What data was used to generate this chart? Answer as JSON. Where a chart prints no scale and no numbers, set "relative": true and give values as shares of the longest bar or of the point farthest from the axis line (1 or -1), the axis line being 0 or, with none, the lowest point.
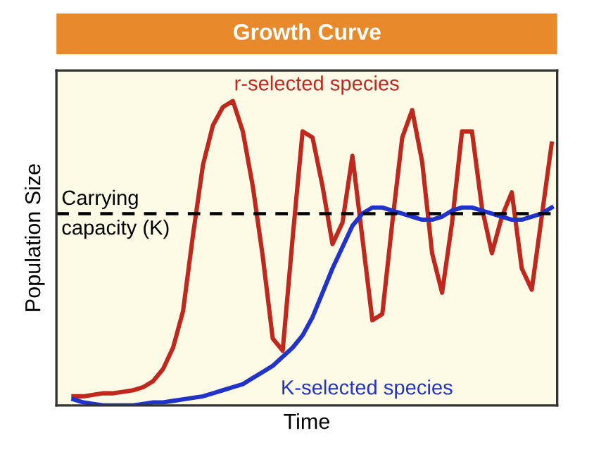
{
  "chart_data": {
    "type": "line",
    "title": "Growth Curve",
    "xlabel": "Time",
    "ylabel": "Population Size",
    "relative": true,
    "legend": false,
    "marker": "none",
    "categories": [
      null,
      null,
      null,
      null,
      null,
      null,
      null,
      null,
      null,
      null,
      null,
      null,
      null,
      null,
      null,
      null,
      null,
      null,
      null,
      null,
      null,
      null,
      null,
      null,
      null,
      null,
      null,
      null,
      null,
      null,
      null,
      null,
      null,
      null,
      null,
      null,
      null,
      null,
      null,
      null,
      null,
      null,
      null,
      null,
      null,
      null,
      null,
      null,
      null
    ],
    "series": [
      {
        "name": "r-selected species",
        "color": "#c0281e",
        "values": [
          0.03,
          0.03,
          0.035,
          0.04,
          0.04,
          0.045,
          0.05,
          0.06,
          0.08,
          0.12,
          0.19,
          0.31,
          0.56,
          0.79,
          0.92,
          0.98,
          1.0,
          0.9,
          0.72,
          0.49,
          0.22,
          0.18,
          0.55,
          0.9,
          0.88,
          0.72,
          0.53,
          0.6,
          0.82,
          0.55,
          0.28,
          0.3,
          0.6,
          0.88,
          0.97,
          0.8,
          0.5,
          0.37,
          0.6,
          0.9,
          0.9,
          0.65,
          0.5,
          0.62,
          0.7,
          0.45,
          0.38,
          0.62,
          0.86
        ]
      },
      {
        "name": "K-selected species",
        "color": "#2233cc",
        "values": [
          0.02,
          0.01,
          0.005,
          0.0,
          0.0,
          0.0,
          0.0,
          0.005,
          0.01,
          0.01,
          0.015,
          0.02,
          0.025,
          0.03,
          0.04,
          0.05,
          0.06,
          0.07,
          0.09,
          0.11,
          0.13,
          0.16,
          0.19,
          0.23,
          0.29,
          0.37,
          0.45,
          0.52,
          0.59,
          0.63,
          0.65,
          0.65,
          0.64,
          0.63,
          0.62,
          0.61,
          0.61,
          0.62,
          0.64,
          0.65,
          0.65,
          0.64,
          0.63,
          0.62,
          0.61,
          0.61,
          0.62,
          0.63,
          0.65
        ]
      }
    ],
    "ref_lines": [
      {
        "axis": "y",
        "value": 0.63,
        "label": "Carrying capacity (K)",
        "color": "#000000",
        "line_style": "dashed"
      }
    ]
  }
}
